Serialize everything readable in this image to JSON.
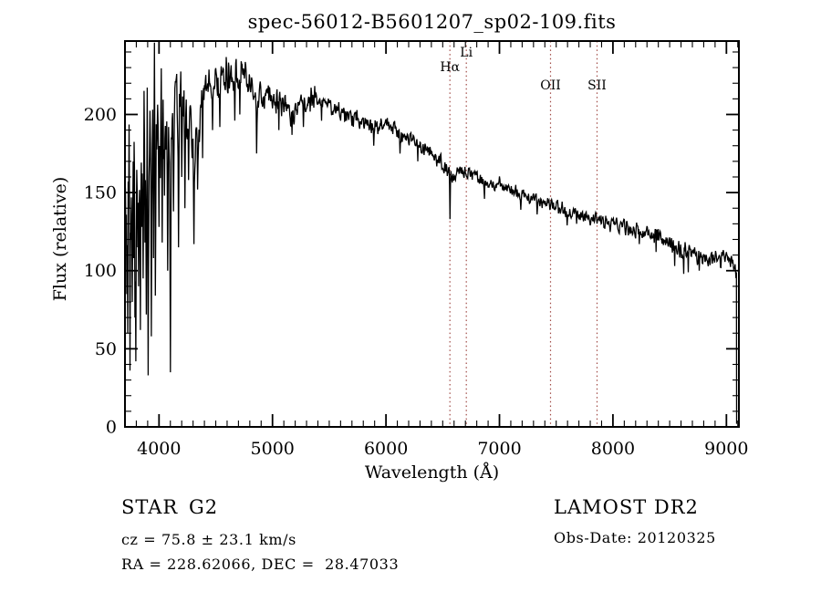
{
  "header": {
    "title": "spec-56012-B5601207_sp02-109.fits"
  },
  "footer": {
    "class_label": "STAR",
    "subclass_label": "G2",
    "cz_line": "cz = 75.8 ± 23.1 km/s",
    "radec_line": "RA = 228.62066, DEC =  28.47033",
    "survey": "LAMOST DR2",
    "obs_date_line": "Obs-Date: 20120325"
  },
  "chart_data": {
    "type": "line",
    "title": "spec-56012-B5601207_sp02-109.fits",
    "xlabel": "Wavelength (Å)",
    "ylabel": "Flux (relative)",
    "xlim": [
      3700,
      9110
    ],
    "ylim": [
      0,
      247
    ],
    "x_major_ticks": [
      4000,
      5000,
      6000,
      7000,
      8000,
      9000
    ],
    "x_minor_step": 100,
    "y_major_ticks": [
      0,
      50,
      100,
      150,
      200
    ],
    "y_minor_step": 10,
    "grid": false,
    "legend": "none",
    "line_color": "#000000",
    "marker_line_color": "#a04a45",
    "spectral_lines": [
      {
        "label": "Hα",
        "wavelength": 6563,
        "label_baseline_y": 78
      },
      {
        "label": "Li",
        "wavelength": 6708,
        "label_baseline_y": 62
      },
      {
        "label": "OII",
        "wavelength": 7450,
        "label_baseline_y": 98
      },
      {
        "label": "SII",
        "wavelength": 7860,
        "label_baseline_y": 98
      }
    ],
    "continuum_points": [
      [
        3700,
        170
      ],
      [
        3720,
        195
      ],
      [
        3740,
        185
      ],
      [
        3760,
        195
      ],
      [
        3780,
        190
      ],
      [
        3800,
        198
      ],
      [
        3830,
        192
      ],
      [
        3860,
        196
      ],
      [
        3890,
        188
      ],
      [
        3920,
        175
      ],
      [
        3950,
        190
      ],
      [
        3980,
        192
      ],
      [
        4010,
        200
      ],
      [
        4040,
        205
      ],
      [
        4070,
        198
      ],
      [
        4100,
        185
      ],
      [
        4130,
        205
      ],
      [
        4160,
        208
      ],
      [
        4190,
        212
      ],
      [
        4220,
        205
      ],
      [
        4250,
        208
      ],
      [
        4280,
        196
      ],
      [
        4310,
        175
      ],
      [
        4340,
        185
      ],
      [
        4370,
        210
      ],
      [
        4400,
        215
      ],
      [
        4430,
        218
      ],
      [
        4460,
        216
      ],
      [
        4490,
        217
      ],
      [
        4520,
        219
      ],
      [
        4550,
        221
      ],
      [
        4580,
        222
      ],
      [
        4610,
        223
      ],
      [
        4640,
        221
      ],
      [
        4670,
        224
      ],
      [
        4700,
        227
      ],
      [
        4730,
        229
      ],
      [
        4760,
        226
      ],
      [
        4790,
        222
      ],
      [
        4820,
        219
      ],
      [
        4861,
        207
      ],
      [
        4890,
        214
      ],
      [
        4920,
        212
      ],
      [
        4950,
        211
      ],
      [
        5000,
        209
      ],
      [
        5050,
        208
      ],
      [
        5100,
        207
      ],
      [
        5170,
        199
      ],
      [
        5220,
        204
      ],
      [
        5270,
        206
      ],
      [
        5320,
        208
      ],
      [
        5370,
        210
      ],
      [
        5420,
        211
      ],
      [
        5470,
        208
      ],
      [
        5520,
        205
      ],
      [
        5570,
        203
      ],
      [
        5620,
        201
      ],
      [
        5670,
        199
      ],
      [
        5720,
        197
      ],
      [
        5770,
        196
      ],
      [
        5820,
        195
      ],
      [
        5870,
        192
      ],
      [
        5920,
        193
      ],
      [
        5970,
        196
      ],
      [
        6020,
        194
      ],
      [
        6070,
        191
      ],
      [
        6120,
        188
      ],
      [
        6170,
        186
      ],
      [
        6220,
        184
      ],
      [
        6270,
        181
      ],
      [
        6320,
        178
      ],
      [
        6370,
        176
      ],
      [
        6420,
        174
      ],
      [
        6470,
        171
      ],
      [
        6520,
        167
      ],
      [
        6550,
        163
      ],
      [
        6590,
        159
      ],
      [
        6610,
        162
      ],
      [
        6640,
        164
      ],
      [
        6680,
        163
      ],
      [
        6720,
        162
      ],
      [
        6760,
        161
      ],
      [
        6800,
        160
      ],
      [
        6840,
        157
      ],
      [
        6880,
        153
      ],
      [
        6920,
        156
      ],
      [
        6960,
        155
      ],
      [
        7000,
        154
      ],
      [
        7060,
        152
      ],
      [
        7120,
        151
      ],
      [
        7180,
        149
      ],
      [
        7240,
        147
      ],
      [
        7300,
        146
      ],
      [
        7360,
        144
      ],
      [
        7420,
        143
      ],
      [
        7480,
        141
      ],
      [
        7540,
        139
      ],
      [
        7600,
        136
      ],
      [
        7660,
        137
      ],
      [
        7720,
        136
      ],
      [
        7780,
        135
      ],
      [
        7840,
        135
      ],
      [
        7900,
        133
      ],
      [
        7960,
        131
      ],
      [
        8020,
        130
      ],
      [
        8080,
        128
      ],
      [
        8140,
        127
      ],
      [
        8200,
        126
      ],
      [
        8260,
        124
      ],
      [
        8320,
        123
      ],
      [
        8380,
        121
      ],
      [
        8440,
        120
      ],
      [
        8500,
        117
      ],
      [
        8560,
        114
      ],
      [
        8620,
        112
      ],
      [
        8680,
        111
      ],
      [
        8740,
        110
      ],
      [
        8800,
        109
      ],
      [
        8860,
        107
      ],
      [
        8920,
        108
      ],
      [
        8980,
        110
      ],
      [
        9040,
        107
      ],
      [
        9088,
        100
      ]
    ],
    "absorption_spikes": [
      [
        3706,
        120
      ],
      [
        3715,
        85
      ],
      [
        3724,
        60
      ],
      [
        3733,
        140
      ],
      [
        3742,
        36
      ],
      [
        3752,
        120
      ],
      [
        3763,
        80
      ],
      [
        3775,
        108
      ],
      [
        3786,
        70
      ],
      [
        3797,
        42
      ],
      [
        3810,
        115
      ],
      [
        3821,
        90
      ],
      [
        3834,
        62
      ],
      [
        3848,
        128
      ],
      [
        3861,
        95
      ],
      [
        3876,
        118
      ],
      [
        3889,
        72
      ],
      [
        3905,
        33
      ],
      [
        3933,
        58
      ],
      [
        3950,
        108
      ],
      [
        3968,
        84
      ],
      [
        3999,
        128
      ],
      [
        4026,
        118
      ],
      [
        4048,
        148
      ],
      [
        4077,
        100
      ],
      [
        4101,
        35
      ],
      [
        4129,
        138
      ],
      [
        4172,
        115
      ],
      [
        4201,
        160
      ],
      [
        4227,
        140
      ],
      [
        4259,
        158
      ],
      [
        4308,
        117
      ],
      [
        4341,
        152
      ],
      [
        4383,
        172
      ],
      [
        4471,
        190
      ],
      [
        4534,
        192
      ],
      [
        4668,
        196
      ],
      [
        4713,
        200
      ],
      [
        4861,
        175
      ],
      [
        5056,
        190
      ],
      [
        5170,
        187
      ],
      [
        5270,
        192
      ],
      [
        5430,
        196
      ],
      [
        5890,
        180
      ],
      [
        6122,
        175
      ],
      [
        6280,
        170
      ],
      [
        6563,
        133
      ],
      [
        6868,
        146
      ],
      [
        7186,
        139
      ],
      [
        7330,
        136
      ],
      [
        7594,
        129
      ],
      [
        7680,
        130
      ],
      [
        8230,
        117
      ],
      [
        8380,
        112
      ],
      [
        8542,
        103
      ],
      [
        8625,
        98
      ],
      [
        8665,
        99
      ],
      [
        8760,
        100
      ],
      [
        8950,
        102
      ]
    ],
    "noise_regions": [
      [
        3700,
        3800,
        50
      ],
      [
        3800,
        4050,
        38
      ],
      [
        4050,
        4400,
        22
      ],
      [
        4400,
        4800,
        11
      ],
      [
        4800,
        5400,
        8
      ],
      [
        5400,
        6000,
        6
      ],
      [
        6000,
        6563,
        5
      ],
      [
        6563,
        7200,
        4.2
      ],
      [
        7200,
        8000,
        4
      ],
      [
        8000,
        9090,
        5
      ]
    ],
    "end_drop_wavelength": 9088,
    "end_drop_flux": 2,
    "sample_step": 4
  }
}
